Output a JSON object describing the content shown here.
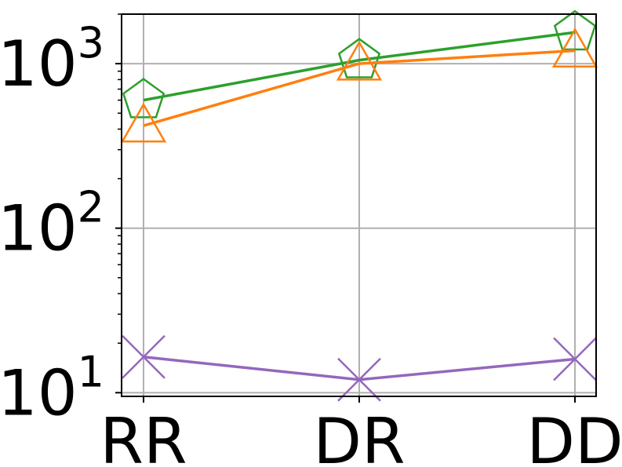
{
  "chart_data": {
    "type": "line",
    "title": "",
    "xlabel": "",
    "ylabel": "",
    "categories": [
      "RR",
      "DR",
      "DD"
    ],
    "y_scale": "log",
    "ylim": [
      9.5,
      2000
    ],
    "grid": true,
    "y_tick_labels": [
      {
        "value": 10,
        "base": "10",
        "exp": "1"
      },
      {
        "value": 100,
        "base": "10",
        "exp": "2"
      },
      {
        "value": 1000,
        "base": "10",
        "exp": "3"
      }
    ],
    "series": [
      {
        "color": "#2ca02c",
        "marker": "pentagon",
        "values": [
          600,
          1050,
          1550
        ]
      },
      {
        "color": "#ff7f0e",
        "marker": "triangle",
        "values": [
          420,
          1000,
          1200
        ]
      },
      {
        "color": "#9467bd",
        "marker": "x",
        "values": [
          16.5,
          12,
          16
        ]
      }
    ]
  }
}
